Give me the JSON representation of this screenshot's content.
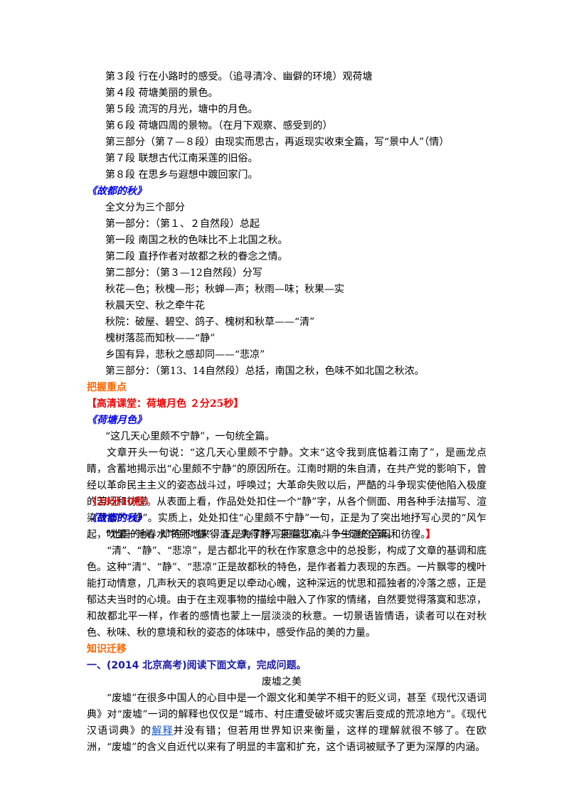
{
  "outline_a": [
    "第３段 行在小路时的感受。（追寻清冷、幽僻的环境）观荷塘",
    "第４段 荷塘美丽的景色。",
    "第５段 流泻的月光，塘中的月色。",
    "第６段 荷塘四周的景物。（在月下观察、感受到的）",
    "第三部分（第７—８段）由现实而思古，再返现实收束全篇，写“景中人”（情）",
    "第７段 联想古代江南采莲的旧俗。",
    "第８段 在思乡与遐想中踱回家门。"
  ],
  "gudu_title": "《故都的秋》",
  "outline_b": [
    "全文分为三个部分",
    "第一部分：（第１、２自然段）总起",
    "第一段 南国之秋的色味比不上北国之秋。",
    "第二段 直抒作者对故都之秋的眷念之情。",
    "第二部分：（第３—12自然段）分写",
    "秋花—色；秋槐—形；秋蝉—声；秋雨—味；秋果—实",
    "秋晨天空、秋之牵牛花",
    "秋院：破屋、碧空、鸽子、槐树和秋草——“清”",
    "槐树落蕊而知秋——“静”",
    "乡国有异，悲秋之感却同——“悲凉”",
    "第三部分：（第13、14自然段）总括，南国之秋，色味不如北国之秋浓。"
  ],
  "key_heading": "把握重点",
  "video_bracket": "【高清课堂：荷塘月色 ２分25秒】",
  "hetang_title": "《荷塘月色》",
  "hetang_line1": "“这几天心里颇不宁静”，一句统全篇。",
  "hetang_para": "文章开头一句说：“这几天心里颇不宁静。文末“这令我到底惦着江南了”，是画龙点睛，含蓄地揭示出“心里颇不宁静”的原因所在。江南时期的朱自清，在共产党的影响下，曾经以革命民主主义的姿态战斗过，呼唤过；大革命失败以后，严酷的斗争现实使他陷入极度的苦闷和彷徨。从表面上看，作品处处扣住一个“静”字，从各个侧面、用各种手法描写、渲染荷塘的“静”。实质上，处处扣住“心里颇不宁静”一句，正是为了突出地抒写心灵的“风乍起，吹皱一池春水”的不“静”，正是为了抒写回首江南斗争生涯的苦闷和彷徨。",
  "hetang_para_end": "】",
  "time2": "（28分10秒）",
  "gudu_title2": "《故都的秋》",
  "gudu_line1": "“北国的秋，却特别地来得清，来得静，来得悲凉。 ”一句统全篇。",
  "gudu_para": "“清”、“静”、“悲凉”，是古都北平的秋在作家意念中的总投影，构成了文章的基调和底色。这种“清”、“静”、“悲凉”正是故都秋的特色，是作者着力表现的东西。一片飘零的槐叶能打动情意，几声秋天的哀鸣更足以牵动心魄，这种深远的忧思和孤独者的冷落之感，正是郁达夫当时的心境。由于在主观事物的描绘中融入了作家的情绪，自然要觉得落寞和悲凉，和故都北平一样，作者的感情也蒙上一层淡淡的秋意。一切景语皆情语，读者可以在对秋色、秋味、秋的意境和秋的姿态的体味中，感受作品的美的力量。",
  "transfer_heading": "知识迁移",
  "question1": "一、(2014 北京高考)阅读下面文章，完成问题。",
  "article_title": "废墟之美",
  "article_para_a": "“废墟”在很多中国人的心目中是一个跟文化和美学不相干的贬义词，甚至《现代汉语词典》对“废墟”一词的解释也仅仅是“城市、村庄遭受破坏或灾害后变成的荒凉地方”。《现代汉语词典》的",
  "article_link": "解释",
  "article_para_b": "并没有错；但若用世界知识来衡量，这样的理解就很不够了。在欧洲，“废墟”的含义自近代以来有了明显的丰富和扩充，这个语词被赋予了更为深厚的内涵。",
  "colors": {
    "blue": "#0000ee",
    "orange": "#ff6600",
    "red": "#ee0000",
    "dark_blue": "#1a1aa8",
    "link": "#1155cc"
  }
}
